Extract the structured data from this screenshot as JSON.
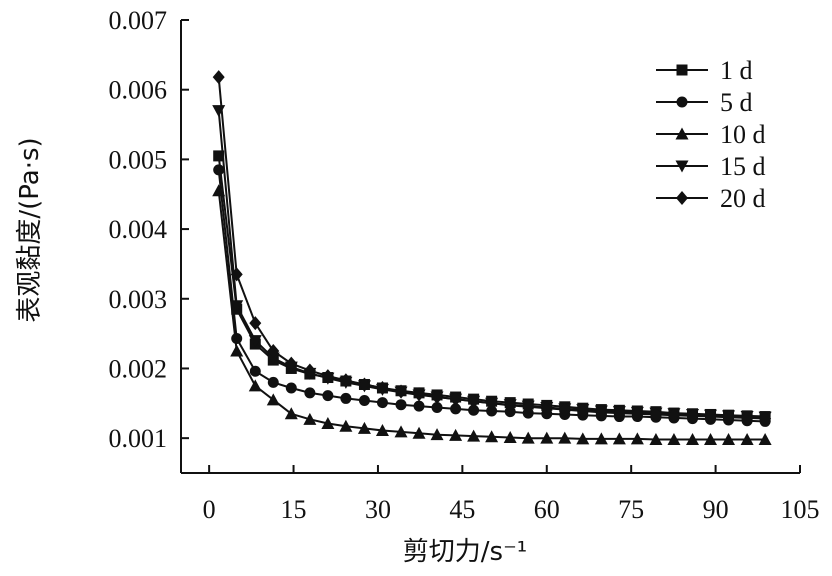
{
  "chart_data": {
    "type": "line",
    "xlabel": "剪切力/s⁻¹",
    "ylabel": "表观黏度/(Pa·s)",
    "xlim": [
      -5,
      105
    ],
    "ylim": [
      0.0005,
      0.007
    ],
    "xticks": [
      0,
      15,
      30,
      45,
      60,
      75,
      90,
      105
    ],
    "yticks": [
      0.001,
      0.002,
      0.003,
      0.004,
      0.005,
      0.006,
      0.007
    ],
    "xtick_labels": [
      "0",
      "15",
      "30",
      "45",
      "60",
      "75",
      "90",
      "105"
    ],
    "ytick_labels": [
      "0.001",
      "0.002",
      "0.003",
      "0.004",
      "0.005",
      "0.006",
      "0.007"
    ],
    "legend_position": "top-right",
    "grid": false,
    "x": [
      1.7,
      4.9,
      8.2,
      11.4,
      14.6,
      17.9,
      21.1,
      24.3,
      27.6,
      30.8,
      34.1,
      37.3,
      40.5,
      43.8,
      47.0,
      50.2,
      53.5,
      56.7,
      60.0,
      63.2,
      66.4,
      69.7,
      72.9,
      76.1,
      79.4,
      82.6,
      85.9,
      89.1,
      92.3,
      95.6,
      98.8
    ],
    "series": [
      {
        "name": "1 d",
        "marker": "square",
        "color": "#111111",
        "values": [
          0.00505,
          0.00285,
          0.00235,
          0.00212,
          0.002,
          0.00192,
          0.00187,
          0.00182,
          0.00177,
          0.00172,
          0.00168,
          0.00165,
          0.00162,
          0.00159,
          0.00156,
          0.00153,
          0.00151,
          0.00149,
          0.00147,
          0.00145,
          0.00143,
          0.00141,
          0.0014,
          0.00139,
          0.00138,
          0.00136,
          0.00135,
          0.00134,
          0.00133,
          0.00132,
          0.00131
        ]
      },
      {
        "name": "5 d",
        "marker": "circle",
        "color": "#111111",
        "values": [
          0.00485,
          0.00243,
          0.00196,
          0.0018,
          0.00172,
          0.00165,
          0.00161,
          0.00157,
          0.00154,
          0.00151,
          0.00148,
          0.00146,
          0.00144,
          0.00142,
          0.0014,
          0.00139,
          0.00138,
          0.00136,
          0.00135,
          0.00134,
          0.00133,
          0.00132,
          0.00131,
          0.00131,
          0.0013,
          0.00129,
          0.00128,
          0.00127,
          0.00126,
          0.00125,
          0.00124
        ]
      },
      {
        "name": "10 d",
        "marker": "triangle-up",
        "color": "#111111",
        "values": [
          0.00455,
          0.00225,
          0.00175,
          0.00155,
          0.00135,
          0.00127,
          0.00121,
          0.00117,
          0.00114,
          0.00111,
          0.00109,
          0.00107,
          0.00105,
          0.00104,
          0.00103,
          0.00102,
          0.00101,
          0.001,
          0.001,
          0.001,
          0.00099,
          0.00099,
          0.00099,
          0.00099,
          0.00098,
          0.00098,
          0.00098,
          0.00098,
          0.00098,
          0.00098,
          0.00098
        ]
      },
      {
        "name": "15 d",
        "marker": "triangle-down",
        "color": "#111111",
        "values": [
          0.0057,
          0.0029,
          0.0024,
          0.00215,
          0.00202,
          0.00193,
          0.00186,
          0.0018,
          0.00175,
          0.0017,
          0.00166,
          0.00162,
          0.00159,
          0.00156,
          0.00153,
          0.0015,
          0.00148,
          0.00146,
          0.00144,
          0.00142,
          0.00141,
          0.00139,
          0.00138,
          0.00137,
          0.00136,
          0.00135,
          0.00134,
          0.00133,
          0.00132,
          0.00131,
          0.0013
        ]
      },
      {
        "name": "20 d",
        "marker": "diamond",
        "color": "#111111",
        "values": [
          0.00618,
          0.00335,
          0.00265,
          0.00225,
          0.00207,
          0.00197,
          0.00189,
          0.00183,
          0.00177,
          0.00172,
          0.00167,
          0.00163,
          0.00159,
          0.00156,
          0.00153,
          0.0015,
          0.00147,
          0.00145,
          0.00143,
          0.00141,
          0.00139,
          0.00137,
          0.00136,
          0.00135,
          0.00134,
          0.00133,
          0.00132,
          0.00131,
          0.0013,
          0.00129,
          0.00128
        ]
      }
    ]
  }
}
